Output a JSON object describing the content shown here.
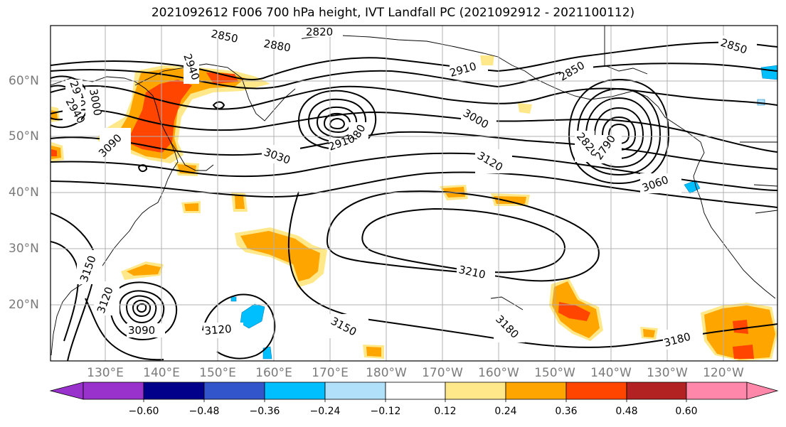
{
  "title": "2021092612 F006 700 hPa height, IVT Landfall PC (2021092912 - 2021100112)",
  "lat_labels": [
    "60°N",
    "50°N",
    "40°N",
    "30°N",
    "20°N"
  ],
  "lon_labels": [
    "130°E",
    "140°E",
    "150°E",
    "160°E",
    "170°E",
    "180°W",
    "170°W",
    "160°W",
    "150°W",
    "140°W",
    "130°W",
    "120°W"
  ],
  "colorbar": {
    "ticks": [
      "−0.60",
      "−0.48",
      "−0.36",
      "−0.24",
      "−0.12",
      "0.12",
      "0.24",
      "0.36",
      "0.48",
      "0.60"
    ],
    "colors": [
      "#9932cc",
      "#00008b",
      "#3355cc",
      "#00bfff",
      "#b0e0fa",
      "#ffffff",
      "#ffe88a",
      "#ffa500",
      "#ff4500",
      "#b22222",
      "#ff88aa"
    ]
  },
  "contour_labels": [
    "2850",
    "2820",
    "2880",
    "2850",
    "2910",
    "2850",
    "2940",
    "2970",
    "3000",
    "2940",
    "3090",
    "2880",
    "2910",
    "3030",
    "3000",
    "3120",
    "2820",
    "2790",
    "3060",
    "3150",
    "3120",
    "3090",
    "3120",
    "3210",
    "3150",
    "3180",
    "3180"
  ],
  "colors": {
    "shade_light": "#ffe88a",
    "shade_orange": "#ffa500",
    "shade_red": "#ff4500",
    "shade_blue": "#00bfff",
    "contour": "#000000",
    "grid": "#b0b0b0"
  }
}
